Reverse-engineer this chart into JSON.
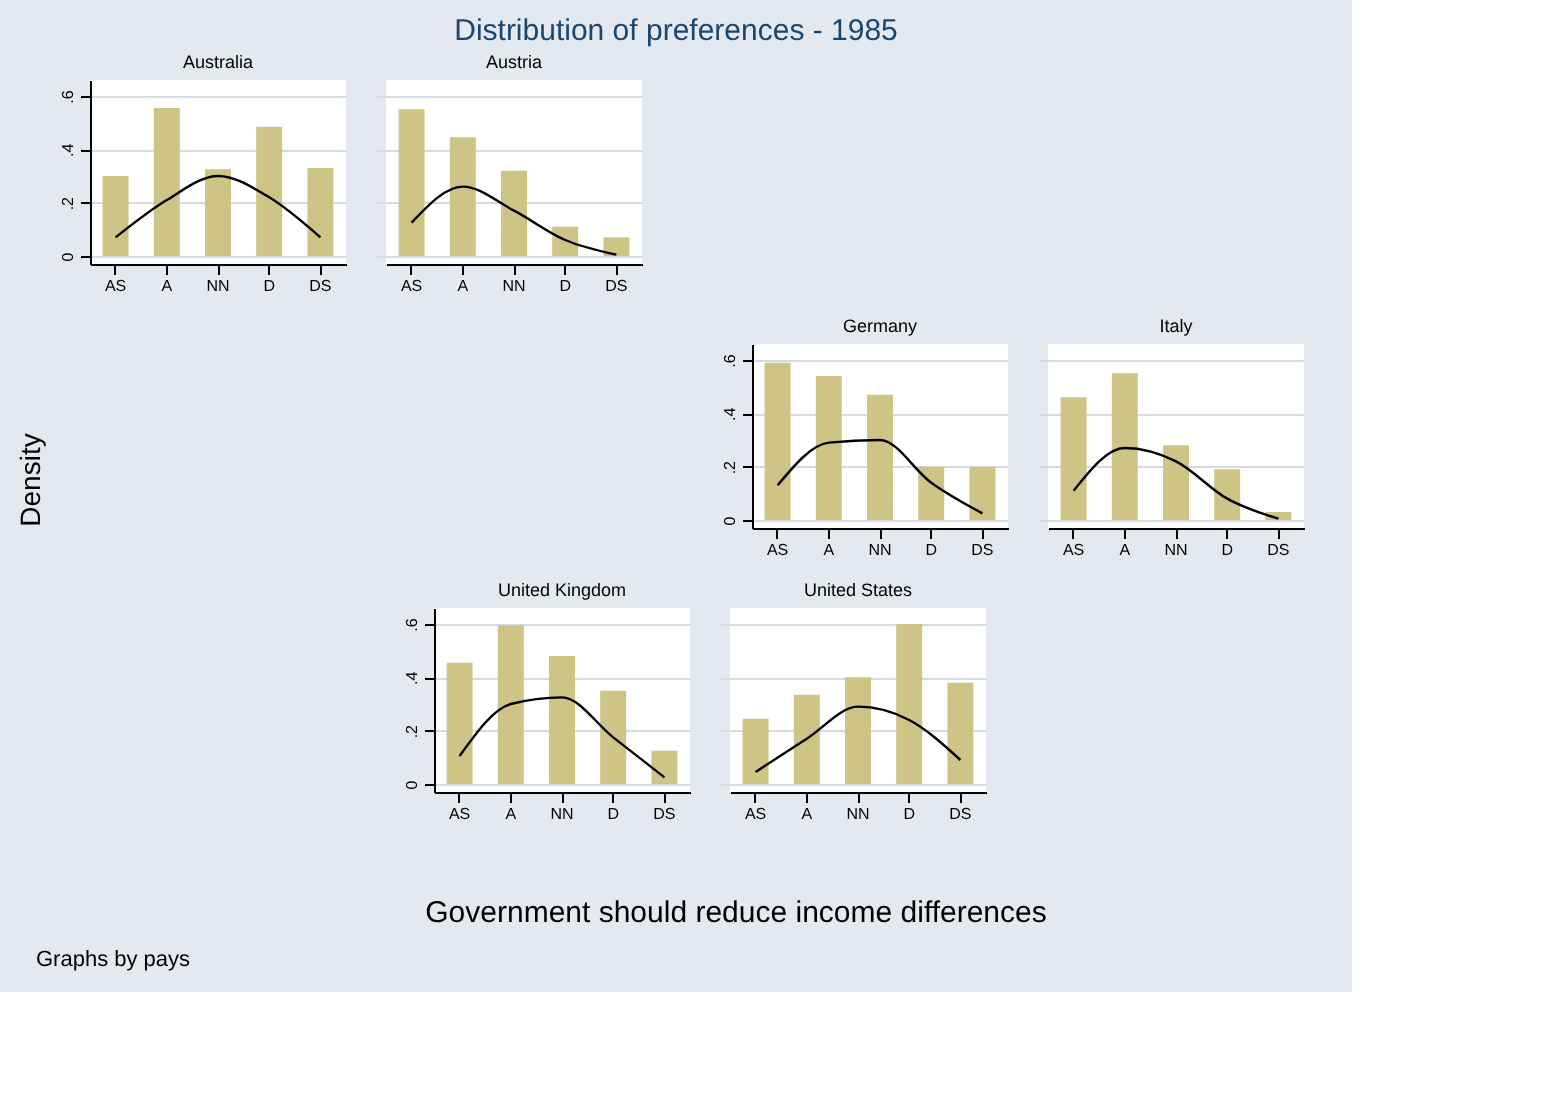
{
  "chart_data": [
    {
      "type": "other",
      "title": "Distribution of preferences - 1985",
      "xlabel": "Government should reduce income differences",
      "ylabel": "Density",
      "annotations": [
        "Graphs by pays"
      ]
    },
    {
      "type": "bar",
      "subtitle": "Australia",
      "categories": [
        "AS",
        "A",
        "NN",
        "D",
        "DS"
      ],
      "series": [
        {
          "type": "bar",
          "color": "#cdc486",
          "values": [
            0.3,
            0.555,
            0.325,
            0.485,
            0.33
          ]
        },
        {
          "type": "line",
          "color": "#000000",
          "values": [
            0.07,
            0.21,
            0.3,
            0.22,
            0.07
          ]
        }
      ],
      "ylim": [
        -0.03,
        0.66
      ],
      "yticks": [
        0,
        {
          "value": 0.2,
          "label": ".2"
        },
        {
          "value": 0.4,
          "label": ".4"
        },
        {
          "value": 0.6,
          "label": ".6"
        }
      ],
      "grid": "y"
    },
    {
      "type": "bar",
      "subtitle": "Austria",
      "categories": [
        "AS",
        "A",
        "NN",
        "D",
        "DS"
      ],
      "series": [
        {
          "type": "bar",
          "color": "#cdc486",
          "values": [
            0.55,
            0.445,
            0.32,
            0.11,
            0.07
          ]
        },
        {
          "type": "line",
          "color": "#000000",
          "values": [
            0.125,
            0.26,
            0.17,
            0.06,
            0.005
          ]
        }
      ],
      "ylim": [
        -0.03,
        0.66
      ],
      "yticks": [
        {
          "value": 0,
          "label": null
        },
        {
          "value": 0.2,
          "label": null
        },
        {
          "value": 0.4,
          "label": null
        },
        {
          "value": 0.6,
          "label": null
        }
      ],
      "grid": "y",
      "tick_labels": "x"
    },
    {
      "type": "bar",
      "subtitle": "Germany",
      "categories": [
        "AS",
        "A",
        "NN",
        "D",
        "DS"
      ],
      "series": [
        {
          "type": "bar",
          "color": "#cdc486",
          "values": [
            0.59,
            0.54,
            0.47,
            0.2,
            0.2
          ]
        },
        {
          "type": "line",
          "color": "#000000",
          "values": [
            0.13,
            0.29,
            0.3,
            0.14,
            0.025
          ]
        }
      ],
      "ylim": [
        -0.03,
        0.66
      ],
      "yticks": [
        0,
        {
          "value": 0.2,
          "label": ".2"
        },
        {
          "value": 0.4,
          "label": ".4"
        },
        {
          "value": 0.6,
          "label": ".6"
        }
      ],
      "grid": "y"
    },
    {
      "type": "bar",
      "subtitle": "Italy",
      "categories": [
        "AS",
        "A",
        "NN",
        "D",
        "DS"
      ],
      "series": [
        {
          "type": "bar",
          "color": "#cdc486",
          "values": [
            0.46,
            0.55,
            0.28,
            0.19,
            0.03
          ]
        },
        {
          "type": "line",
          "color": "#000000",
          "values": [
            0.11,
            0.27,
            0.22,
            0.08,
            0.005
          ]
        }
      ],
      "ylim": [
        -0.03,
        0.66
      ],
      "yticks": [
        {
          "value": 0,
          "label": null
        },
        {
          "value": 0.2,
          "label": null
        },
        {
          "value": 0.4,
          "label": null
        },
        {
          "value": 0.6,
          "label": null
        }
      ],
      "grid": "y",
      "tick_labels": "x"
    },
    {
      "type": "bar",
      "subtitle": "United Kingdom",
      "categories": [
        "AS",
        "A",
        "NN",
        "D",
        "DS"
      ],
      "series": [
        {
          "type": "bar",
          "color": "#cdc486",
          "values": [
            0.455,
            0.595,
            0.48,
            0.35,
            0.125
          ]
        },
        {
          "type": "line",
          "color": "#000000",
          "values": [
            0.105,
            0.3,
            0.325,
            0.175,
            0.025
          ]
        }
      ],
      "ylim": [
        -0.03,
        0.66
      ],
      "yticks": [
        0,
        {
          "value": 0.2,
          "label": ".2"
        },
        {
          "value": 0.4,
          "label": ".4"
        },
        {
          "value": 0.6,
          "label": ".6"
        }
      ],
      "grid": "y"
    },
    {
      "type": "bar",
      "subtitle": "United States",
      "categories": [
        "AS",
        "A",
        "NN",
        "D",
        "DS"
      ],
      "series": [
        {
          "type": "bar",
          "color": "#cdc486",
          "values": [
            0.245,
            0.335,
            0.4,
            0.6,
            0.38
          ]
        },
        {
          "type": "line",
          "color": "#000000",
          "values": [
            0.045,
            0.17,
            0.29,
            0.24,
            0.09
          ]
        }
      ],
      "ylim": [
        -0.03,
        0.66
      ],
      "yticks": [
        {
          "value": 0,
          "label": null
        },
        {
          "value": 0.2,
          "label": null
        },
        {
          "value": 0.4,
          "label": null
        },
        {
          "value": 0.6,
          "label": null
        }
      ],
      "grid": "y",
      "tick_labels": "x"
    }
  ]
}
